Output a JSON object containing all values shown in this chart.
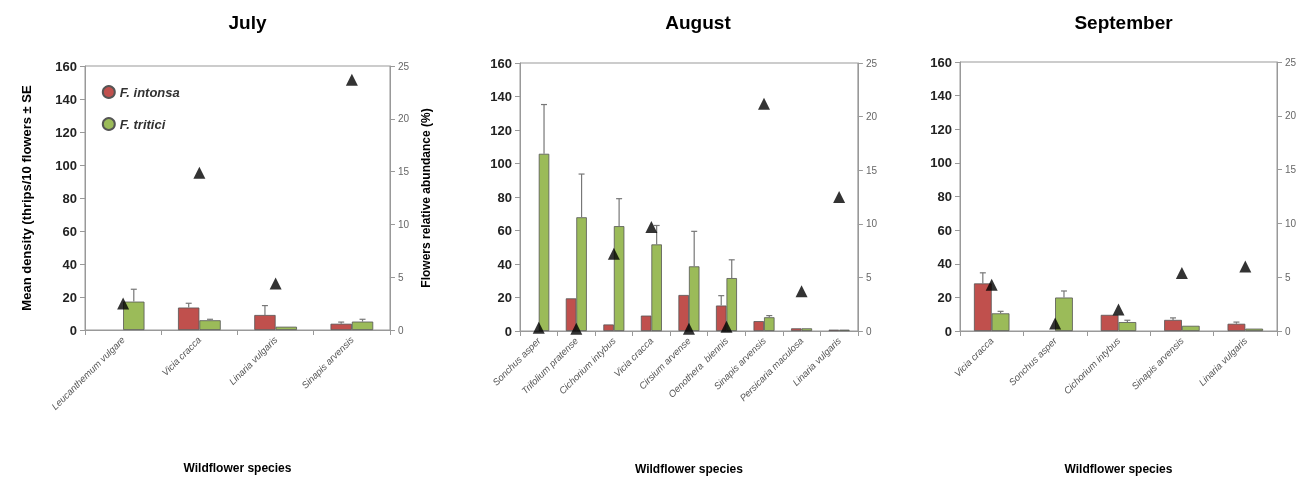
{
  "chart_data": [
    {
      "type": "bar",
      "title": "July",
      "xlabel": "Wildflower species",
      "ylabel": "Mean density (thrips/10 flowers ± SE",
      "y2label": "Flowers relative abundance (%)",
      "categories": [
        "Leucanthemum vulgare",
        "Vicia cracca",
        "Linaria vulgaris",
        "Sinapis arvensis"
      ],
      "series": [
        {
          "name": "F. intonsa",
          "color": "#c0504d",
          "values": [
            null,
            13.6,
            9.1,
            3.8
          ],
          "errors": [
            null,
            2.6,
            5.7,
            1.0
          ]
        },
        {
          "name": "F. tritici",
          "color": "#9bbb59",
          "values": [
            17.2,
            5.9,
            2.0,
            5.1
          ],
          "errors": [
            7.5,
            0.6,
            null,
            1.4
          ]
        },
        {
          "type": "scatter",
          "axis": "y2",
          "color": "#000000",
          "marker": "triangle",
          "values": [
            2.5,
            14.9,
            4.4,
            23.7
          ]
        }
      ],
      "ylim": [
        0,
        160
      ],
      "yticks": [
        0,
        20,
        40,
        60,
        80,
        100,
        120,
        140,
        160
      ],
      "y2lim": [
        0,
        25
      ],
      "y2ticks": [
        0,
        5,
        10,
        15,
        20,
        25
      ],
      "legend": "top left",
      "grid": false
    },
    {
      "type": "bar",
      "title": "August",
      "xlabel": "Wildflower species",
      "categories": [
        "Sonchus asper",
        "Trifolium pratense",
        "Cichorium intybus",
        "Vicia cracca",
        "Cirsium arvense",
        "Oenothera  biennis",
        "Sinapis arvensis",
        "Persicaria maculosa",
        "Linaria vulgaris"
      ],
      "series": [
        {
          "color": "#c0504d",
          "values": [
            null,
            19.5,
            3.9,
            9.2,
            21.5,
            15.2,
            5.9,
            1.6,
            0.8
          ],
          "errors": [
            null,
            null,
            null,
            null,
            null,
            5.9,
            null,
            null,
            null
          ]
        },
        {
          "color": "#9bbb59",
          "values": [
            105.8,
            67.9,
            62.6,
            51.7,
            38.6,
            31.6,
            8.2,
            1.6,
            0.8
          ],
          "errors": [
            29.4,
            25.8,
            16.4,
            11.3,
            20.9,
            10.9,
            1.0,
            null,
            null
          ]
        },
        {
          "type": "scatter",
          "axis": "y2",
          "color": "#000000",
          "marker": "triangle",
          "values": [
            0.3,
            0.2,
            7.2,
            9.7,
            0.2,
            0.4,
            21.2,
            3.7,
            12.5
          ]
        }
      ],
      "ylim": [
        0,
        160
      ],
      "yticks": [
        0,
        20,
        40,
        60,
        80,
        100,
        120,
        140,
        160
      ],
      "y2lim": [
        0,
        25
      ],
      "y2ticks": [
        0,
        5,
        10,
        15,
        20,
        25
      ],
      "legend": false,
      "grid": false
    },
    {
      "type": "bar",
      "title": "September",
      "xlabel": "Wildflower species",
      "categories": [
        "Vicia cracca",
        "Sonchus asper",
        "Cichorium intybus",
        "Sinapis arvensis",
        "Linaria vulgaris"
      ],
      "series": [
        {
          "color": "#c0504d",
          "values": [
            28.3,
            null,
            9.6,
            6.6,
            4.3
          ],
          "errors": [
            6.3,
            null,
            null,
            1.2,
            1.0
          ]
        },
        {
          "color": "#9bbb59",
          "values": [
            10.5,
            19.9,
            5.3,
            3.1,
            1.4
          ],
          "errors": [
            1.2,
            3.9,
            1.1,
            null,
            null
          ]
        },
        {
          "type": "scatter",
          "axis": "y2",
          "color": "#000000",
          "marker": "triangle",
          "values": [
            4.3,
            0.7,
            2.0,
            5.4,
            6.0
          ]
        }
      ],
      "ylim": [
        0,
        160
      ],
      "yticks": [
        0,
        20,
        40,
        60,
        80,
        100,
        120,
        140,
        160
      ],
      "y2lim": [
        0,
        25
      ],
      "y2ticks": [
        0,
        5,
        10,
        15,
        20,
        25
      ],
      "legend": false,
      "grid": false
    }
  ]
}
